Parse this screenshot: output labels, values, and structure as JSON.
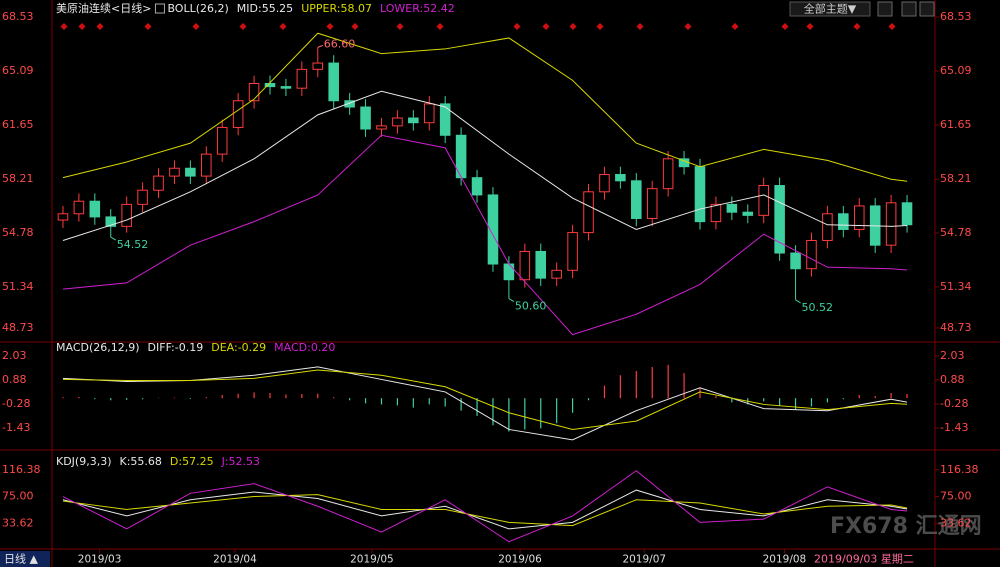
{
  "ui": {
    "theme_button": "全部主题▼",
    "period": "日线 ▲",
    "date": "2019/09/03 星期二",
    "watermark": "FX678 汇通网"
  },
  "chart_data": [
    {
      "type": "candlestick",
      "title": "美原油连续<日线>",
      "indicator": "BOLL(26,2)",
      "xlim": [
        -0.5,
        53.5
      ],
      "ylim": [
        47.96,
        68.98
      ],
      "yticks": [
        68.53,
        65.09,
        61.65,
        58.21,
        54.78,
        51.34,
        48.73
      ],
      "up_color": "#ff3b3b",
      "down_color": "#3fd0a0",
      "candles": {
        "open": [
          55.6,
          56.0,
          56.8,
          55.8,
          55.2,
          56.6,
          57.5,
          58.4,
          58.9,
          58.4,
          59.8,
          61.5,
          63.2,
          64.3,
          64.1,
          64.0,
          65.2,
          65.6,
          63.2,
          62.8,
          61.4,
          61.6,
          62.1,
          61.8,
          63.0,
          61.0,
          58.3,
          57.2,
          52.8,
          51.8,
          53.6,
          51.9,
          52.4,
          54.8,
          57.4,
          58.5,
          58.1,
          55.7,
          57.6,
          59.5,
          59.0,
          55.5,
          56.6,
          56.1,
          55.9,
          57.8,
          53.5,
          52.5,
          54.3,
          56.0,
          55.0,
          56.5,
          54.0,
          56.7
        ],
        "high": [
          56.5,
          57.3,
          57.3,
          56.3,
          57.1,
          58.0,
          58.9,
          59.4,
          59.4,
          60.3,
          62.0,
          63.7,
          64.8,
          64.8,
          64.6,
          65.7,
          66.6,
          66.1,
          63.7,
          63.3,
          62.1,
          62.6,
          62.6,
          63.5,
          63.5,
          61.5,
          58.8,
          57.7,
          53.3,
          54.1,
          54.1,
          52.9,
          55.3,
          57.9,
          59.0,
          59.0,
          58.6,
          58.1,
          60.0,
          60.0,
          59.5,
          57.1,
          57.1,
          56.6,
          58.3,
          58.3,
          54.0,
          54.8,
          56.5,
          56.5,
          57.0,
          57.0,
          57.2,
          57.2
        ],
        "low": [
          55.1,
          55.5,
          55.3,
          54.52,
          54.8,
          56.1,
          57.0,
          57.9,
          57.9,
          57.9,
          59.3,
          61.0,
          62.7,
          63.6,
          63.5,
          63.5,
          64.7,
          62.7,
          62.3,
          60.9,
          60.9,
          61.1,
          61.3,
          61.3,
          60.5,
          57.8,
          56.7,
          52.3,
          50.6,
          51.3,
          51.4,
          51.4,
          51.9,
          54.3,
          56.9,
          57.6,
          55.2,
          55.2,
          57.1,
          58.5,
          55.0,
          55.0,
          55.6,
          55.4,
          55.4,
          53.0,
          50.52,
          52.0,
          53.8,
          54.5,
          54.5,
          53.5,
          53.5,
          54.8
        ],
        "close": [
          56.0,
          56.8,
          55.8,
          55.2,
          56.6,
          57.5,
          58.4,
          58.9,
          58.4,
          59.8,
          61.5,
          63.2,
          64.3,
          64.1,
          64.0,
          65.2,
          65.6,
          63.2,
          62.8,
          61.4,
          61.6,
          62.1,
          61.8,
          63.0,
          61.0,
          58.3,
          57.2,
          52.8,
          51.8,
          53.6,
          51.9,
          52.4,
          54.8,
          57.4,
          58.5,
          58.1,
          55.7,
          57.6,
          59.5,
          59.0,
          55.5,
          56.6,
          56.1,
          55.9,
          57.8,
          53.5,
          52.5,
          54.3,
          56.0,
          55.0,
          56.5,
          54.0,
          56.7,
          55.3
        ]
      },
      "series": [
        {
          "name": "MID:55.25",
          "color": "#e8e8e8",
          "x": [
            0,
            4,
            8,
            12,
            16,
            20,
            24,
            28,
            32,
            36,
            40,
            44,
            48,
            52,
            53
          ],
          "values": [
            54.3,
            55.6,
            57.4,
            59.5,
            62.3,
            63.8,
            62.8,
            59.8,
            57.0,
            55.0,
            56.3,
            57.2,
            55.3,
            55.2,
            55.25
          ]
        },
        {
          "name": "UPPER:58.07",
          "color": "#d8d800",
          "x": [
            0,
            4,
            8,
            12,
            16,
            20,
            24,
            28,
            32,
            36,
            40,
            44,
            48,
            52,
            53
          ],
          "values": [
            58.3,
            59.3,
            60.5,
            63.3,
            67.5,
            66.2,
            66.5,
            67.2,
            64.5,
            60.5,
            59.0,
            60.1,
            59.4,
            58.2,
            58.07
          ]
        },
        {
          "name": "LOWER:52.42",
          "color": "#d020d0",
          "x": [
            0,
            4,
            8,
            12,
            16,
            20,
            24,
            28,
            32,
            36,
            40,
            44,
            48,
            52,
            53
          ],
          "values": [
            51.2,
            51.6,
            54.0,
            55.5,
            57.2,
            61.0,
            60.2,
            52.8,
            48.3,
            49.6,
            51.5,
            54.7,
            52.6,
            52.5,
            52.42
          ]
        }
      ],
      "annotations": [
        {
          "x": 16,
          "value": 66.6,
          "label": "66.60",
          "color": "#ff6a6a"
        },
        {
          "x": 3,
          "value": 54.52,
          "label": "54.52",
          "color": "#3fd0a0"
        },
        {
          "x": 28,
          "value": 50.6,
          "label": "50.60",
          "color": "#3fd0a0"
        },
        {
          "x": 46,
          "value": 50.52,
          "label": "50.52",
          "color": "#3fd0a0"
        }
      ]
    },
    {
      "type": "macd",
      "title": "MACD(26,12,9)",
      "xlim": [
        -0.5,
        53.5
      ],
      "ylim": [
        -2.39,
        2.6
      ],
      "yticks": [
        2.03,
        0.88,
        -0.28,
        -1.43
      ],
      "histogram": {
        "name": "MACD:0.20",
        "color": "#d020d0",
        "up_color": "#ff3b3b",
        "down_color": "#3fd0a0",
        "values": [
          0.05,
          0.06,
          -0.05,
          -0.1,
          -0.08,
          -0.05,
          0.02,
          0.03,
          -0.04,
          0.05,
          0.15,
          0.22,
          0.28,
          0.25,
          0.18,
          0.2,
          0.22,
          0.05,
          -0.1,
          -0.25,
          -0.3,
          -0.35,
          -0.45,
          -0.3,
          -0.4,
          -0.6,
          -0.85,
          -1.3,
          -1.6,
          -1.5,
          -1.45,
          -1.2,
          -0.7,
          -0.1,
          0.6,
          1.1,
          1.3,
          1.5,
          1.6,
          1.2,
          0.5,
          0.1,
          -0.2,
          -0.3,
          -0.15,
          -0.35,
          -0.55,
          -0.4,
          -0.2,
          -0.05,
          0.15,
          0.1,
          0.25,
          0.2
        ]
      },
      "series": [
        {
          "name": "DIFF:-0.19",
          "color": "#e8e8e8",
          "x": [
            0,
            4,
            8,
            12,
            16,
            20,
            24,
            28,
            32,
            36,
            40,
            44,
            48,
            52,
            53
          ],
          "values": [
            0.95,
            0.8,
            0.85,
            1.1,
            1.5,
            0.9,
            0.3,
            -1.5,
            -2.0,
            -0.6,
            0.5,
            -0.5,
            -0.6,
            -0.05,
            -0.19
          ]
        },
        {
          "name": "DEA:-0.29",
          "color": "#d8d800",
          "x": [
            0,
            4,
            8,
            12,
            16,
            20,
            24,
            28,
            32,
            36,
            40,
            44,
            48,
            52,
            53
          ],
          "values": [
            0.9,
            0.85,
            0.85,
            0.95,
            1.35,
            1.1,
            0.55,
            -0.7,
            -1.5,
            -1.1,
            0.3,
            -0.3,
            -0.55,
            -0.25,
            -0.29
          ]
        }
      ]
    },
    {
      "type": "kdj",
      "title": "KDJ(9,3,3)",
      "xlim": [
        -0.5,
        53.5
      ],
      "ylim": [
        -4.7,
        144
      ],
      "yticks": [
        116.38,
        {
          "value": 75,
          "label": "75.00"
        },
        33.62
      ],
      "xticks": [
        {
          "value": 2.3,
          "label": "2019/03"
        },
        {
          "value": 10.8,
          "label": "2019/04"
        },
        {
          "value": 19.4,
          "label": "2019/05"
        },
        {
          "value": 28.7,
          "label": "2019/06"
        },
        {
          "value": 36.5,
          "label": "2019/07"
        },
        {
          "value": 45.3,
          "label": "2019/08"
        }
      ],
      "series": [
        {
          "name": "K:55.68",
          "color": "#e8e8e8",
          "x": [
            0,
            4,
            8,
            12,
            16,
            20,
            24,
            28,
            32,
            36,
            40,
            44,
            48,
            52,
            53
          ],
          "values": [
            70,
            45,
            70,
            82,
            72,
            45,
            60,
            25,
            35,
            85,
            55,
            45,
            70,
            60,
            55.68
          ]
        },
        {
          "name": "D:57.25",
          "color": "#d8d800",
          "x": [
            0,
            4,
            8,
            12,
            16,
            20,
            24,
            28,
            32,
            36,
            40,
            44,
            48,
            52,
            53
          ],
          "values": [
            68,
            55,
            65,
            75,
            78,
            55,
            55,
            35,
            30,
            70,
            65,
            48,
            60,
            62,
            57.25
          ]
        },
        {
          "name": "J:52.53",
          "color": "#d020d0",
          "x": [
            0,
            4,
            8,
            12,
            16,
            20,
            24,
            28,
            32,
            36,
            40,
            44,
            48,
            52,
            53
          ],
          "values": [
            75,
            25,
            80,
            95,
            60,
            20,
            70,
            5,
            45,
            115,
            35,
            40,
            90,
            55,
            52.53
          ]
        }
      ]
    }
  ]
}
